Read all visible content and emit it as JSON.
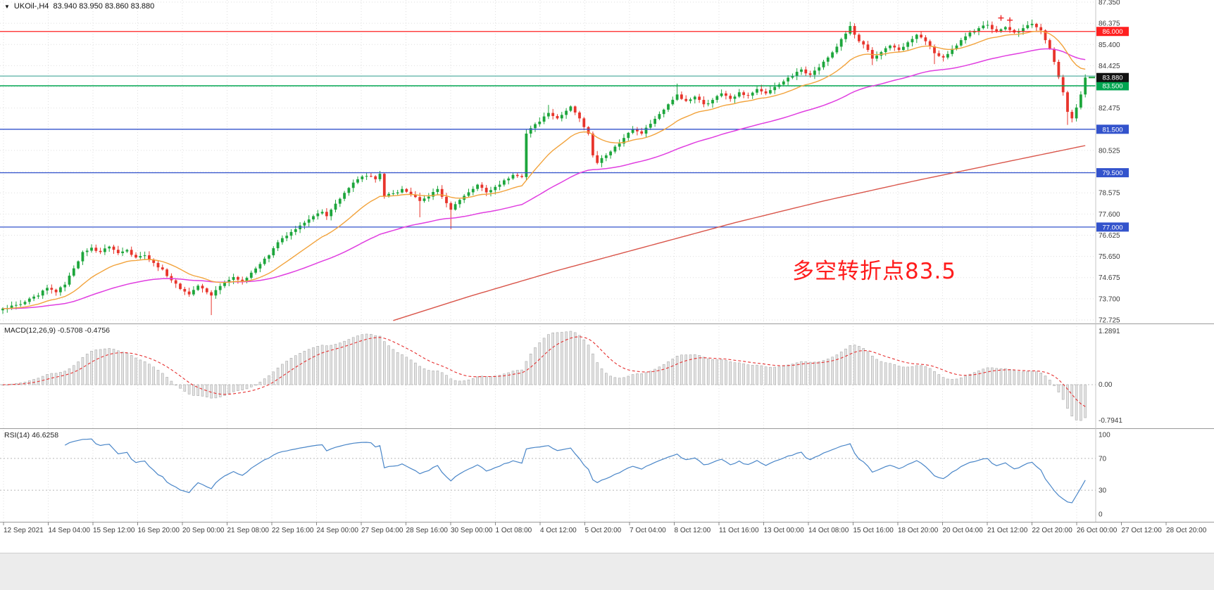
{
  "header": {
    "dropdown_icon": "▼",
    "symbol_title": "UKOil-,H4  83.940 83.950 83.860 83.880"
  },
  "annotation": {
    "text": "多空转折点83.5",
    "color": "#ff1c1c"
  },
  "indicators": {
    "macd_label": "MACD(12,26,9) -0.5708 -0.4756",
    "rsi_label": "RSI(14) 46.6258"
  },
  "colors": {
    "bull": "#1da63c",
    "bear": "#e8352c",
    "ma_fast": "#f2a33c",
    "ma_mid": "#e03ee0",
    "ma_slow": "#d9554a",
    "grid": "#dfdfdf",
    "axis_text": "#3c3c3c",
    "macd_bar_fill": "#e3e3e3",
    "macd_bar_stroke": "#ababab",
    "macd_signal": "#e63030",
    "rsi_line": "#4a86c8",
    "badge_black": "#111111"
  },
  "chart_data": {
    "type": "candlestick",
    "symbol": "UKOil-",
    "timeframe": "H4",
    "ohlc_display": {
      "open": "83.940",
      "high": "83.950",
      "low": "83.860",
      "close": "83.880"
    },
    "price_axis": {
      "grid_max": 87.35,
      "grid_min": 72.725,
      "grid_step": 0.975,
      "visible_ticks": [
        "87.350",
        "86.375",
        "85.400",
        "84.425",
        "82.475",
        "80.525",
        "78.575",
        "77.600",
        "76.625",
        "75.650",
        "74.675",
        "73.700",
        "72.725"
      ]
    },
    "levels": [
      {
        "value": 86.0,
        "label": "86.000",
        "color": "#ff2020",
        "width": 1.2,
        "badge": true
      },
      {
        "value": 83.95,
        "label": null,
        "color": "#2e9e8e",
        "width": 1.0,
        "badge": false
      },
      {
        "value": 83.5,
        "label": "83.500",
        "color": "#00a550",
        "width": 1.6,
        "badge": true
      },
      {
        "value": 81.5,
        "label": "81.500",
        "color": "#3353cc",
        "width": 1.3,
        "badge": true
      },
      {
        "value": 79.5,
        "label": "79.500",
        "color": "#3353cc",
        "width": 1.3,
        "badge": true
      },
      {
        "value": 77.0,
        "label": "77.000",
        "color": "#3353cc",
        "width": 1.3,
        "badge": true
      }
    ],
    "current_price": {
      "value": 83.88,
      "label": "83.880"
    },
    "time_labels": [
      "12 Sep 2021",
      "14 Sep 04:00",
      "15 Sep 12:00",
      "16 Sep 20:00",
      "20 Sep 00:00",
      "21 Sep 08:00",
      "22 Sep 16:00",
      "24 Sep 00:00",
      "27 Sep 04:00",
      "28 Sep 16:00",
      "30 Sep 00:00",
      "1 Oct 08:00",
      "4 Oct 12:00",
      "5 Oct 20:00",
      "7 Oct 04:00",
      "8 Oct 12:00",
      "11 Oct 16:00",
      "13 Oct 00:00",
      "14 Oct 08:00",
      "15 Oct 16:00",
      "18 Oct 20:00",
      "20 Oct 04:00",
      "21 Oct 12:00",
      "22 Oct 20:00",
      "26 Oct 00:00",
      "27 Oct 12:00",
      "28 Oct 20:00"
    ],
    "candles": {
      "count": 245,
      "close_anchors": [
        [
          0,
          73.25
        ],
        [
          4,
          73.45
        ],
        [
          8,
          73.85
        ],
        [
          10,
          74.2
        ],
        [
          12,
          74.0
        ],
        [
          14,
          74.35
        ],
        [
          16,
          75.1
        ],
        [
          18,
          75.85
        ],
        [
          20,
          76.05
        ],
        [
          22,
          75.85
        ],
        [
          24,
          76.1
        ],
        [
          26,
          75.8
        ],
        [
          28,
          75.95
        ],
        [
          30,
          75.6
        ],
        [
          32,
          75.7
        ],
        [
          34,
          75.35
        ],
        [
          36,
          75.05
        ],
        [
          38,
          74.55
        ],
        [
          40,
          74.15
        ],
        [
          42,
          73.9
        ],
        [
          44,
          74.3
        ],
        [
          46,
          74.0
        ],
        [
          47,
          73.85
        ],
        [
          48,
          74.1
        ],
        [
          50,
          74.45
        ],
        [
          52,
          74.7
        ],
        [
          54,
          74.5
        ],
        [
          56,
          74.9
        ],
        [
          58,
          75.3
        ],
        [
          60,
          75.7
        ],
        [
          62,
          76.3
        ],
        [
          64,
          76.6
        ],
        [
          66,
          76.9
        ],
        [
          68,
          77.2
        ],
        [
          70,
          77.5
        ],
        [
          72,
          77.7
        ],
        [
          73,
          77.5
        ],
        [
          74,
          77.8
        ],
        [
          76,
          78.3
        ],
        [
          78,
          78.8
        ],
        [
          80,
          79.2
        ],
        [
          82,
          79.35
        ],
        [
          84,
          79.2
        ],
        [
          85,
          79.45
        ],
        [
          86,
          78.4
        ],
        [
          88,
          78.55
        ],
        [
          90,
          78.75
        ],
        [
          92,
          78.5
        ],
        [
          94,
          78.2
        ],
        [
          96,
          78.4
        ],
        [
          98,
          78.75
        ],
        [
          100,
          78.1
        ],
        [
          101,
          77.8
        ],
        [
          103,
          78.25
        ],
        [
          105,
          78.6
        ],
        [
          107,
          78.95
        ],
        [
          109,
          78.6
        ],
        [
          111,
          78.85
        ],
        [
          113,
          79.15
        ],
        [
          115,
          79.4
        ],
        [
          117,
          79.3
        ],
        [
          118,
          81.3
        ],
        [
          119,
          81.55
        ],
        [
          121,
          81.85
        ],
        [
          123,
          82.25
        ],
        [
          125,
          82.0
        ],
        [
          127,
          82.35
        ],
        [
          128,
          82.55
        ],
        [
          130,
          82.0
        ],
        [
          131,
          81.6
        ],
        [
          132,
          81.3
        ],
        [
          133,
          80.3
        ],
        [
          134,
          79.95
        ],
        [
          136,
          80.3
        ],
        [
          138,
          80.7
        ],
        [
          140,
          81.1
        ],
        [
          142,
          81.5
        ],
        [
          144,
          81.3
        ],
        [
          146,
          81.75
        ],
        [
          148,
          82.2
        ],
        [
          150,
          82.65
        ],
        [
          152,
          83.1
        ],
        [
          154,
          82.8
        ],
        [
          156,
          83.0
        ],
        [
          158,
          82.65
        ],
        [
          160,
          82.85
        ],
        [
          162,
          83.15
        ],
        [
          164,
          82.9
        ],
        [
          166,
          83.2
        ],
        [
          168,
          83.05
        ],
        [
          170,
          83.35
        ],
        [
          172,
          83.15
        ],
        [
          174,
          83.45
        ],
        [
          176,
          83.7
        ],
        [
          178,
          83.95
        ],
        [
          180,
          84.25
        ],
        [
          182,
          84.0
        ],
        [
          184,
          84.35
        ],
        [
          186,
          84.8
        ],
        [
          188,
          85.3
        ],
        [
          190,
          85.9
        ],
        [
          191,
          86.25
        ],
        [
          192,
          85.85
        ],
        [
          193,
          85.55
        ],
        [
          195,
          85.15
        ],
        [
          196,
          84.75
        ],
        [
          198,
          85.05
        ],
        [
          200,
          85.35
        ],
        [
          202,
          85.15
        ],
        [
          204,
          85.5
        ],
        [
          206,
          85.85
        ],
        [
          208,
          85.55
        ],
        [
          210,
          85.0
        ],
        [
          212,
          84.8
        ],
        [
          214,
          85.2
        ],
        [
          216,
          85.6
        ],
        [
          218,
          85.95
        ],
        [
          220,
          86.15
        ],
        [
          222,
          86.3
        ],
        [
          224,
          86.0
        ],
        [
          226,
          86.2
        ],
        [
          228,
          85.95
        ],
        [
          230,
          86.15
        ],
        [
          232,
          86.35
        ],
        [
          234,
          86.05
        ],
        [
          235,
          85.6
        ],
        [
          236,
          85.2
        ],
        [
          237,
          84.6
        ],
        [
          238,
          83.9
        ],
        [
          239,
          83.2
        ],
        [
          240,
          82.3
        ],
        [
          241,
          82.0
        ],
        [
          242,
          82.5
        ],
        [
          243,
          83.1
        ],
        [
          244,
          83.88
        ]
      ],
      "wick_overrides": [
        {
          "bar": 47,
          "low": 72.95
        },
        {
          "bar": 94,
          "low": 77.45
        },
        {
          "bar": 101,
          "low": 76.9
        },
        {
          "bar": 118,
          "high": 81.5
        },
        {
          "bar": 123,
          "high": 82.62
        },
        {
          "bar": 152,
          "high": 83.6
        },
        {
          "bar": 191,
          "high": 86.45
        },
        {
          "bar": 196,
          "low": 84.45
        },
        {
          "bar": 210,
          "low": 84.5
        },
        {
          "bar": 222,
          "high": 86.5
        },
        {
          "bar": 232,
          "high": 86.55
        },
        {
          "bar": 240,
          "low": 81.7
        }
      ]
    },
    "moving_averages": {
      "fast_period": 18,
      "mid_period": 58,
      "slow_anchors": [
        [
          88,
          72.7
        ],
        [
          105,
          73.8
        ],
        [
          125,
          75.0
        ],
        [
          145,
          76.1
        ],
        [
          165,
          77.2
        ],
        [
          185,
          78.2
        ],
        [
          205,
          79.1
        ],
        [
          225,
          79.95
        ],
        [
          244,
          80.75
        ]
      ]
    },
    "decorations": {
      "plus_marks": [
        {
          "bar": 225,
          "price": 86.62
        },
        {
          "bar": 227,
          "price": 86.52
        }
      ]
    },
    "macd": {
      "fast": 12,
      "slow": 26,
      "signal": 9,
      "current": "-0.5708",
      "signal_current": "-0.4756",
      "axis_labels": [
        "1.2891",
        "0.00",
        "-0.7941"
      ]
    },
    "rsi": {
      "period": 14,
      "current": "46.6258",
      "axis_labels": [
        "100",
        "70",
        "30",
        "0"
      ],
      "level_lines": [
        70,
        30
      ]
    }
  }
}
